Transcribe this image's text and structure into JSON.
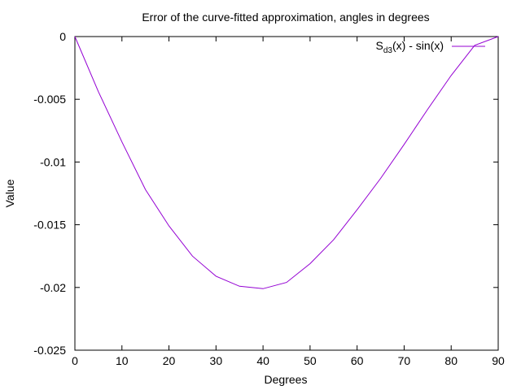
{
  "chart_data": {
    "type": "line",
    "title": "Error of the curve-fitted approximation, angles in degrees",
    "xlabel": "Degrees",
    "ylabel": "Value",
    "xlim": [
      0,
      90
    ],
    "ylim": [
      -0.025,
      0
    ],
    "xticks": [
      0,
      10,
      20,
      30,
      40,
      50,
      60,
      70,
      80,
      90
    ],
    "xtick_labels": [
      "0",
      "10",
      "20",
      "30",
      "40",
      "50",
      "60",
      "70",
      "80",
      "90"
    ],
    "yticks": [
      0,
      -0.005,
      -0.01,
      -0.015,
      -0.02,
      -0.025
    ],
    "ytick_labels": [
      "0",
      "-0.005",
      "-0.01",
      "-0.015",
      "-0.02",
      "-0.025"
    ],
    "grid": false,
    "legend_position": "top-right",
    "series": [
      {
        "name": "Sd3(x) - sin(x)",
        "legend_main": "S",
        "legend_sub": "d3",
        "legend_rest": "(x) - sin(x)",
        "color": "#9400d3",
        "x": [
          0,
          5,
          10,
          15,
          20,
          25,
          30,
          35,
          40,
          45,
          50,
          55,
          60,
          65,
          70,
          75,
          80,
          85,
          90
        ],
        "y": [
          0,
          -0.0044,
          -0.0084,
          -0.0122,
          -0.0151,
          -0.0175,
          -0.0191,
          -0.0199,
          -0.0201,
          -0.0196,
          -0.0181,
          -0.0162,
          -0.0138,
          -0.0113,
          -0.0086,
          -0.0058,
          -0.0031,
          -0.0007,
          0
        ]
      }
    ]
  }
}
